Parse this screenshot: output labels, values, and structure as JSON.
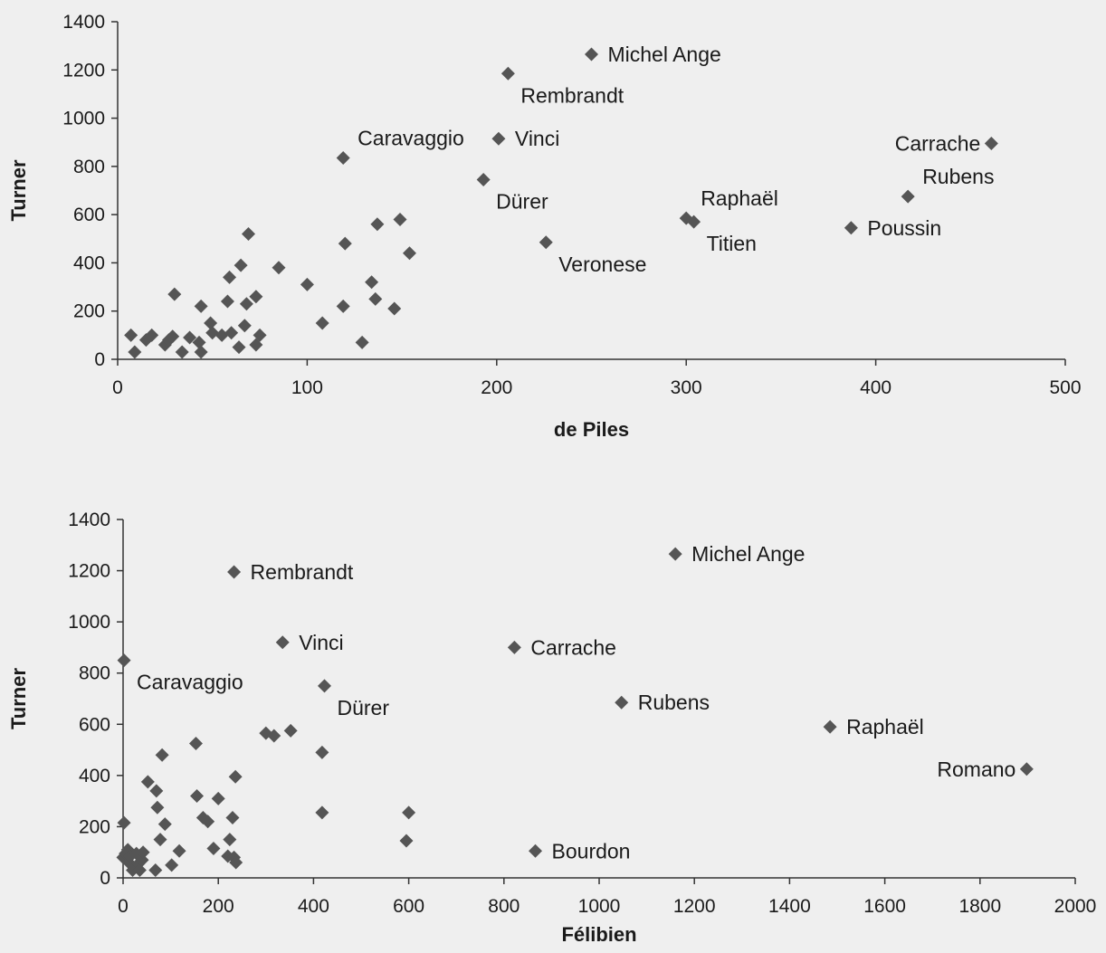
{
  "chart_data": [
    {
      "type": "scatter",
      "xlabel": "de Piles",
      "ylabel": "Turner",
      "xlim": [
        0,
        500
      ],
      "ylim": [
        0,
        1400
      ],
      "xticks": [
        "0",
        "100",
        "200",
        "300",
        "400",
        "500"
      ],
      "yticks": [
        "0",
        "200",
        "400",
        "600",
        "800",
        "1000",
        "1200",
        "1400"
      ],
      "marker_color": "#555555",
      "points": [
        {
          "x": 250,
          "y": 1265,
          "label": "Michel Ange",
          "pos": "right"
        },
        {
          "x": 206,
          "y": 1185,
          "label": "Rembrandt",
          "pos": "below-right"
        },
        {
          "x": 201,
          "y": 915,
          "label": "Vinci",
          "pos": "right"
        },
        {
          "x": 119,
          "y": 835,
          "label": "Caravaggio",
          "pos": "above-right"
        },
        {
          "x": 193,
          "y": 745,
          "label": "Dürer",
          "pos": "below-right"
        },
        {
          "x": 226,
          "y": 485,
          "label": "Veronese",
          "pos": "below-right"
        },
        {
          "x": 300,
          "y": 585,
          "label": "Raphaël",
          "pos": "above-right"
        },
        {
          "x": 304,
          "y": 570,
          "label": "Titien",
          "pos": "below-right"
        },
        {
          "x": 461,
          "y": 895,
          "label": "Carrache",
          "pos": "left"
        },
        {
          "x": 417,
          "y": 675,
          "label": "Rubens",
          "pos": "above-right"
        },
        {
          "x": 387,
          "y": 545,
          "label": "Poussin",
          "pos": "right"
        },
        {
          "x": 7,
          "y": 100
        },
        {
          "x": 9,
          "y": 30
        },
        {
          "x": 15,
          "y": 80
        },
        {
          "x": 18,
          "y": 100
        },
        {
          "x": 25,
          "y": 60
        },
        {
          "x": 27,
          "y": 80
        },
        {
          "x": 29,
          "y": 95
        },
        {
          "x": 30,
          "y": 270
        },
        {
          "x": 34,
          "y": 30
        },
        {
          "x": 38,
          "y": 90
        },
        {
          "x": 43,
          "y": 70
        },
        {
          "x": 44,
          "y": 30
        },
        {
          "x": 44,
          "y": 220
        },
        {
          "x": 49,
          "y": 150
        },
        {
          "x": 50,
          "y": 110
        },
        {
          "x": 55,
          "y": 100
        },
        {
          "x": 58,
          "y": 240
        },
        {
          "x": 59,
          "y": 340
        },
        {
          "x": 60,
          "y": 110
        },
        {
          "x": 64,
          "y": 50
        },
        {
          "x": 65,
          "y": 390
        },
        {
          "x": 67,
          "y": 140
        },
        {
          "x": 68,
          "y": 230
        },
        {
          "x": 69,
          "y": 520
        },
        {
          "x": 73,
          "y": 60
        },
        {
          "x": 73,
          "y": 260
        },
        {
          "x": 75,
          "y": 100
        },
        {
          "x": 85,
          "y": 380
        },
        {
          "x": 100,
          "y": 310
        },
        {
          "x": 108,
          "y": 150
        },
        {
          "x": 119,
          "y": 220
        },
        {
          "x": 120,
          "y": 480
        },
        {
          "x": 129,
          "y": 70
        },
        {
          "x": 134,
          "y": 320
        },
        {
          "x": 136,
          "y": 250
        },
        {
          "x": 137,
          "y": 560
        },
        {
          "x": 146,
          "y": 210
        },
        {
          "x": 149,
          "y": 580
        },
        {
          "x": 154,
          "y": 440
        }
      ]
    },
    {
      "type": "scatter",
      "xlabel": "Félibien",
      "ylabel": "Turner",
      "xlim": [
        0,
        2000
      ],
      "ylim": [
        0,
        1400
      ],
      "xticks": [
        "0",
        "200",
        "400",
        "600",
        "800",
        "1000",
        "1200",
        "1400",
        "1600",
        "1800",
        "2000"
      ],
      "yticks": [
        "0",
        "200",
        "400",
        "600",
        "800",
        "1000",
        "1200",
        "1400"
      ],
      "marker_color": "#555555",
      "points": [
        {
          "x": 1160,
          "y": 1265,
          "label": "Michel Ange",
          "pos": "right"
        },
        {
          "x": 233,
          "y": 1195,
          "label": "Rembrandt",
          "pos": "right"
        },
        {
          "x": 335,
          "y": 920,
          "label": "Vinci",
          "pos": "right"
        },
        {
          "x": 822,
          "y": 900,
          "label": "Carrache",
          "pos": "right"
        },
        {
          "x": 2,
          "y": 850,
          "label": "Caravaggio",
          "pos": "below-right"
        },
        {
          "x": 423,
          "y": 750,
          "label": "Dürer",
          "pos": "below-right"
        },
        {
          "x": 1047,
          "y": 685,
          "label": "Rubens",
          "pos": "right"
        },
        {
          "x": 1485,
          "y": 590,
          "label": "Raphaël",
          "pos": "right"
        },
        {
          "x": 1898,
          "y": 425,
          "label": "Romano",
          "pos": "left"
        },
        {
          "x": 866,
          "y": 105,
          "label": "Bourdon",
          "pos": "right"
        },
        {
          "x": 2,
          "y": 215
        },
        {
          "x": 0,
          "y": 80
        },
        {
          "x": 5,
          "y": 95
        },
        {
          "x": 10,
          "y": 110
        },
        {
          "x": 12,
          "y": 60
        },
        {
          "x": 15,
          "y": 85
        },
        {
          "x": 20,
          "y": 30
        },
        {
          "x": 28,
          "y": 95
        },
        {
          "x": 32,
          "y": 55
        },
        {
          "x": 35,
          "y": 30
        },
        {
          "x": 40,
          "y": 70
        },
        {
          "x": 42,
          "y": 100
        },
        {
          "x": 52,
          "y": 375
        },
        {
          "x": 68,
          "y": 30
        },
        {
          "x": 70,
          "y": 340
        },
        {
          "x": 72,
          "y": 275
        },
        {
          "x": 78,
          "y": 150
        },
        {
          "x": 82,
          "y": 480
        },
        {
          "x": 88,
          "y": 210
        },
        {
          "x": 102,
          "y": 50
        },
        {
          "x": 118,
          "y": 105
        },
        {
          "x": 153,
          "y": 525
        },
        {
          "x": 155,
          "y": 320
        },
        {
          "x": 168,
          "y": 235
        },
        {
          "x": 178,
          "y": 220
        },
        {
          "x": 190,
          "y": 115
        },
        {
          "x": 200,
          "y": 310
        },
        {
          "x": 220,
          "y": 85
        },
        {
          "x": 224,
          "y": 150
        },
        {
          "x": 230,
          "y": 235
        },
        {
          "x": 233,
          "y": 80
        },
        {
          "x": 236,
          "y": 395
        },
        {
          "x": 237,
          "y": 60
        },
        {
          "x": 300,
          "y": 565
        },
        {
          "x": 317,
          "y": 555
        },
        {
          "x": 352,
          "y": 575
        },
        {
          "x": 418,
          "y": 490
        },
        {
          "x": 418,
          "y": 255
        },
        {
          "x": 595,
          "y": 145
        },
        {
          "x": 600,
          "y": 255
        }
      ]
    }
  ]
}
